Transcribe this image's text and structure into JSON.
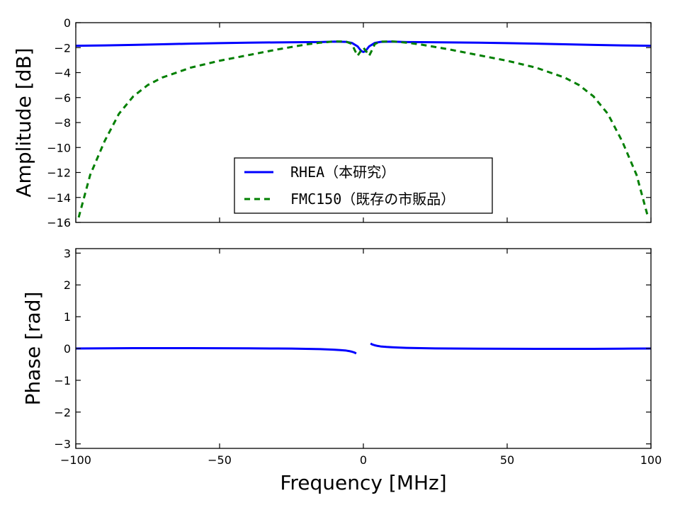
{
  "chart_data": [
    {
      "type": "line",
      "panel": "amplitude",
      "xlabel": "",
      "ylabel": "Amplitude [dB]",
      "xlim": [
        -100,
        100
      ],
      "ylim": [
        -16,
        0
      ],
      "xticks": [
        -100,
        -50,
        0,
        50,
        100
      ],
      "yticks": [
        0,
        -2,
        -4,
        -6,
        -8,
        -10,
        -12,
        -14,
        -16
      ],
      "ytick_labels": [
        "0",
        "−2",
        "−4",
        "−6",
        "−8",
        "−10",
        "−12",
        "−14",
        "−16"
      ],
      "grid": false,
      "legend_position": "lower-center",
      "series": [
        {
          "name": "RHEA（本研究）",
          "color": "#0000ff",
          "style": "solid",
          "x": [
            -100,
            -90,
            -80,
            -70,
            -60,
            -50,
            -40,
            -30,
            -20,
            -15,
            -10,
            -6,
            -4,
            -2,
            -1.5,
            -1,
            -0.5,
            0,
            0.5,
            1,
            1.5,
            2,
            4,
            6,
            10,
            15,
            20,
            30,
            40,
            50,
            60,
            70,
            80,
            90,
            100
          ],
          "y": [
            -1.85,
            -1.82,
            -1.78,
            -1.73,
            -1.68,
            -1.64,
            -1.6,
            -1.58,
            -1.56,
            -1.55,
            -1.52,
            -1.54,
            -1.62,
            -1.9,
            -2.05,
            -2.2,
            -2.3,
            -2.35,
            -2.3,
            -2.2,
            -2.05,
            -1.9,
            -1.62,
            -1.54,
            -1.52,
            -1.55,
            -1.56,
            -1.58,
            -1.6,
            -1.64,
            -1.68,
            -1.73,
            -1.78,
            -1.82,
            -1.85
          ]
        },
        {
          "name": "FMC150（既存の市販品）",
          "color": "#007f00",
          "style": "dashed",
          "x": [
            -99,
            -95,
            -90,
            -85,
            -80,
            -75,
            -70,
            -60,
            -50,
            -40,
            -30,
            -20,
            -15,
            -10,
            -6,
            -4,
            -3,
            -2,
            -1,
            0,
            1,
            2,
            3,
            4,
            6,
            10,
            15,
            20,
            30,
            40,
            50,
            60,
            70,
            75,
            80,
            85,
            90,
            95,
            99
          ],
          "y": [
            -15.6,
            -12.2,
            -9.5,
            -7.3,
            -5.9,
            -5.0,
            -4.4,
            -3.6,
            -3.05,
            -2.6,
            -2.15,
            -1.75,
            -1.6,
            -1.5,
            -1.52,
            -1.7,
            -2.2,
            -2.65,
            -2.3,
            -2.0,
            -2.3,
            -2.65,
            -2.2,
            -1.7,
            -1.52,
            -1.5,
            -1.6,
            -1.75,
            -2.15,
            -2.6,
            -3.05,
            -3.6,
            -4.4,
            -5.0,
            -5.9,
            -7.3,
            -9.5,
            -12.2,
            -15.6
          ]
        }
      ]
    },
    {
      "type": "line",
      "panel": "phase",
      "xlabel": "Frequency [MHz]",
      "ylabel": "Phase [rad]",
      "xlim": [
        -100,
        100
      ],
      "ylim": [
        -3.14159,
        3.14159
      ],
      "xticks": [
        -100,
        -50,
        0,
        50,
        100
      ],
      "xtick_labels": [
        "−100",
        "−50",
        "0",
        "50",
        "100"
      ],
      "yticks": [
        3,
        2,
        1,
        0,
        -1,
        -2,
        -3
      ],
      "ytick_labels": [
        "3",
        "2",
        "1",
        "0",
        "−1",
        "−2",
        "−3"
      ],
      "grid": false,
      "series": [
        {
          "color": "#0000ff",
          "style": "solid",
          "segments": [
            {
              "x": [
                -100,
                -90,
                -80,
                -70,
                -60,
                -50,
                -40,
                -30,
                -25,
                -20,
                -15,
                -12,
                -10,
                -8,
                -6,
                -5,
                -4,
                -3,
                -2.5
              ],
              "y": [
                0.0,
                0.005,
                0.01,
                0.01,
                0.01,
                0.008,
                0.005,
                0.0,
                -0.004,
                -0.01,
                -0.02,
                -0.03,
                -0.04,
                -0.05,
                -0.065,
                -0.08,
                -0.1,
                -0.13,
                -0.16
              ]
            },
            {
              "x": [
                2.5,
                3,
                4,
                5,
                6,
                8,
                10,
                12,
                15,
                20,
                25,
                30,
                40,
                50,
                60,
                70,
                80,
                90,
                100
              ],
              "y": [
                0.16,
                0.13,
                0.1,
                0.08,
                0.065,
                0.05,
                0.04,
                0.03,
                0.02,
                0.01,
                0.004,
                0.0,
                -0.005,
                -0.008,
                -0.01,
                -0.01,
                -0.01,
                -0.005,
                0.0
              ]
            }
          ]
        }
      ]
    }
  ]
}
